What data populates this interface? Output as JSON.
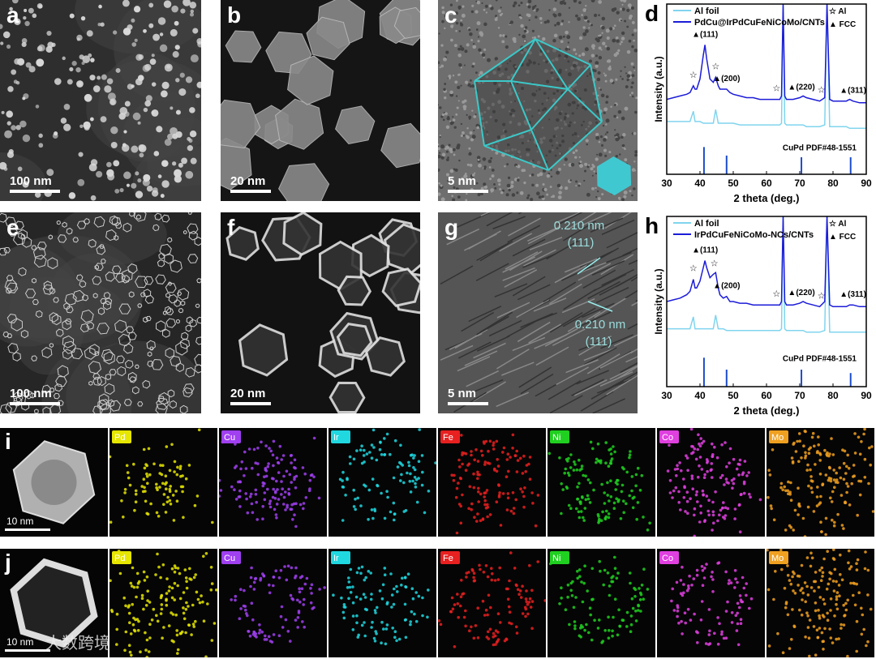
{
  "panels": [
    {
      "label": "a",
      "scale_bar": "100 nm"
    },
    {
      "label": "b",
      "scale_bar": "20 nm"
    },
    {
      "label": "c",
      "scale_bar": "5 nm"
    },
    {
      "label": "e",
      "scale_bar": "100 nm"
    },
    {
      "label": "f",
      "scale_bar": "20 nm"
    },
    {
      "label": "g",
      "scale_bar": "5 nm",
      "annotations": [
        "0.210 nm",
        "(111)",
        "0.210 nm",
        "(111)"
      ]
    }
  ],
  "eds_rows": [
    {
      "label": "i",
      "scale_bar": "10 nm",
      "elements": [
        "Pd",
        "Cu",
        "Ir",
        "Fe",
        "Ni",
        "Co",
        "Mo"
      ]
    },
    {
      "label": "j",
      "scale_bar": "10 nm",
      "elements": [
        "Pd",
        "Cu",
        "Ir",
        "Fe",
        "Ni",
        "Co",
        "Mo"
      ]
    }
  ],
  "element_colors": [
    "#e6e600",
    "#a040f0",
    "#20d8e0",
    "#e82020",
    "#20d020",
    "#e040e0",
    "#f0a020"
  ],
  "watermark": "大数跨境",
  "chart_data": [
    {
      "type": "line",
      "label": "d",
      "xlabel": "2 theta (deg.)",
      "ylabel": "Intensity (a.u.)",
      "xlim": [
        30,
        90
      ],
      "xticks": [
        30,
        40,
        50,
        60,
        70,
        80,
        90
      ],
      "ylim": [
        0,
        100
      ],
      "x": [
        30,
        32,
        34,
        36,
        37,
        38,
        38.5,
        39,
        40,
        41,
        41.5,
        42,
        43,
        44,
        44.7,
        45.5,
        46,
        47,
        48,
        49,
        50,
        52,
        54,
        56,
        58,
        60,
        62,
        64,
        64.5,
        65,
        65.5,
        66,
        68,
        70,
        71,
        72,
        74,
        76,
        77.5,
        78.2,
        79,
        80,
        82,
        84,
        85,
        86,
        88,
        90
      ],
      "series": [
        {
          "name": "Al foil",
          "color": "#80d4ee",
          "values": [
            31,
            31,
            31,
            31,
            31,
            37,
            31,
            31,
            31,
            30,
            30,
            30,
            30,
            30,
            38,
            30,
            30,
            30,
            30,
            30,
            30,
            29,
            29,
            29,
            29,
            29,
            29,
            29,
            30,
            100,
            30,
            29,
            29,
            29,
            29,
            28,
            28,
            28,
            29,
            100,
            28,
            28,
            28,
            28,
            27,
            27,
            27,
            27
          ]
        },
        {
          "name": "PdCu@IrPdCuFeNiCoMo/CNTs",
          "color": "#1c1cd8",
          "values": [
            44,
            45,
            46,
            47,
            48,
            52,
            50,
            50,
            56,
            70,
            76,
            68,
            56,
            54,
            57,
            52,
            50,
            50,
            50,
            48,
            47,
            46,
            45,
            45,
            44,
            44,
            44,
            44,
            46,
            100,
            46,
            44,
            44,
            45,
            46,
            45,
            44,
            43,
            45,
            100,
            44,
            43,
            43,
            43,
            44,
            43,
            42,
            42
          ]
        }
      ],
      "marker_legend": [
        "☆ Al",
        "▲ FCC"
      ],
      "peak_labels": [
        {
          "text": "▲(111)",
          "x": 41.5
        },
        {
          "text": "▲(200)",
          "x": 48
        },
        {
          "text": "▲(220)",
          "x": 70.5
        },
        {
          "text": "▲(311)",
          "x": 86
        }
      ],
      "star_labels": [
        {
          "text": "☆",
          "x": 38
        },
        {
          "text": "☆",
          "x": 44.7
        },
        {
          "text": "☆",
          "x": 63
        },
        {
          "text": "☆",
          "x": 76.5
        }
      ],
      "reference": {
        "name": "CuPd PDF#48-1551",
        "color": "#1c4cc8",
        "x": [
          41.2,
          48,
          70.5,
          85.3
        ],
        "values": [
          16,
          11,
          10,
          10
        ]
      }
    },
    {
      "type": "line",
      "label": "h",
      "xlabel": "2 theta (deg.)",
      "ylabel": "Intensity (a.u.)",
      "xlim": [
        30,
        90
      ],
      "xticks": [
        30,
        40,
        50,
        60,
        70,
        80,
        90
      ],
      "ylim": [
        0,
        100
      ],
      "x": [
        30,
        32,
        34,
        36,
        37,
        38,
        38.5,
        39,
        40,
        41,
        41.5,
        42,
        43,
        44,
        44.7,
        45.5,
        46,
        47,
        48,
        49,
        50,
        52,
        54,
        56,
        58,
        60,
        62,
        64,
        64.5,
        65,
        65.5,
        66,
        68,
        70,
        71,
        72,
        74,
        76,
        77.5,
        78.2,
        79,
        80,
        82,
        84,
        85,
        86,
        88,
        90
      ],
      "series": [
        {
          "name": "Al foil",
          "color": "#80d4ee",
          "values": [
            34,
            34,
            34,
            34,
            34,
            41,
            34,
            34,
            34,
            34,
            34,
            34,
            34,
            34,
            42,
            34,
            34,
            34,
            33,
            33,
            33,
            33,
            33,
            33,
            33,
            33,
            33,
            33,
            34,
            100,
            34,
            33,
            33,
            33,
            33,
            32,
            32,
            32,
            33,
            100,
            32,
            32,
            32,
            32,
            32,
            32,
            32,
            32
          ]
        },
        {
          "name": "IrPdCuFeNiCoMo-NCs/CNTs",
          "color": "#1c1cd8",
          "values": [
            50,
            51,
            52,
            54,
            56,
            63,
            58,
            58,
            62,
            70,
            74,
            70,
            64,
            66,
            67,
            58,
            54,
            52,
            53,
            50,
            50,
            49,
            49,
            48,
            48,
            48,
            48,
            48,
            50,
            100,
            50,
            48,
            48,
            49,
            50,
            49,
            48,
            47,
            50,
            100,
            48,
            47,
            47,
            47,
            48,
            48,
            47,
            47
          ]
        }
      ],
      "marker_legend": [
        "☆ Al",
        "▲ FCC"
      ],
      "peak_labels": [
        {
          "text": "▲(111)",
          "x": 41.5
        },
        {
          "text": "▲(200)",
          "x": 48
        },
        {
          "text": "▲(220)",
          "x": 70.5
        },
        {
          "text": "▲(311)",
          "x": 86
        }
      ],
      "star_labels": [
        {
          "text": "☆",
          "x": 38
        },
        {
          "text": "☆",
          "x": 44.3
        },
        {
          "text": "☆",
          "x": 63
        },
        {
          "text": "☆",
          "x": 76.5
        }
      ],
      "reference": {
        "name": "CuPd PDF#48-1551",
        "color": "#1c4cc8",
        "x": [
          41.2,
          48,
          70.5,
          85.3
        ],
        "values": [
          17,
          10,
          10,
          8
        ]
      }
    }
  ]
}
